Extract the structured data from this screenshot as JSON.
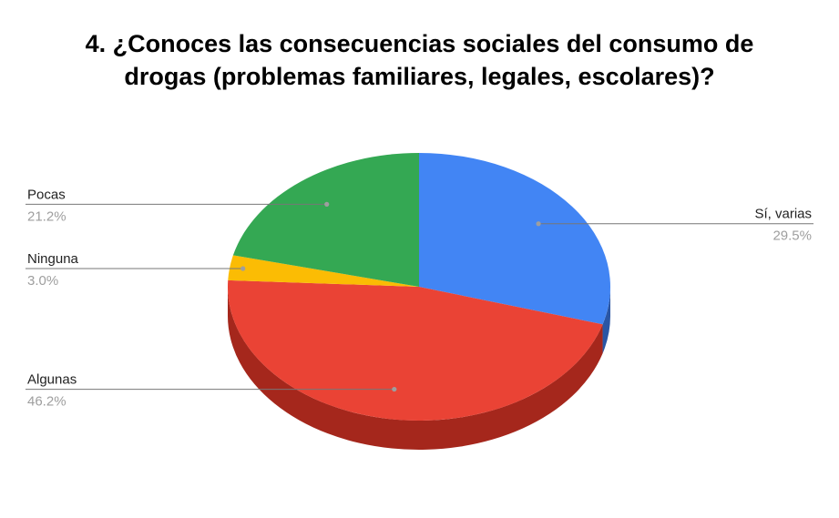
{
  "chart_data": {
    "type": "pie",
    "title_lines": [
      "4. ¿Conoces las consecuencias sociales del consumo de",
      "drogas (problemas familiares, legales, escolares)?"
    ],
    "style": "3d",
    "slices": [
      {
        "label": "Sí, varias",
        "value": 29.5,
        "value_label": "29.5%",
        "color": "#4285f4",
        "side_color": "#2a56a5"
      },
      {
        "label": "Algunas",
        "value": 46.2,
        "value_label": "46.2%",
        "color": "#ea4335",
        "side_color": "#a5271c"
      },
      {
        "label": "Ninguna",
        "value": 3.0,
        "value_label": "3.0%",
        "color": "#fbbc04",
        "side_color": "#b88a00"
      },
      {
        "label": "Pocas",
        "value": 21.2,
        "value_label": "21.2%",
        "color": "#34a853",
        "side_color": "#1f7a3a"
      }
    ]
  }
}
